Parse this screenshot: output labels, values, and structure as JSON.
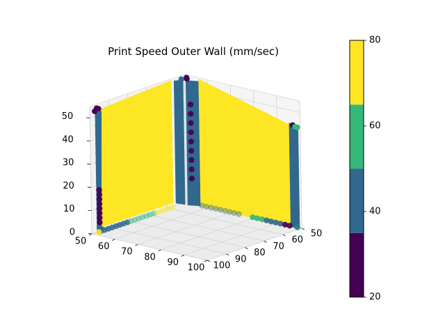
{
  "chart_data": {
    "type": "scatter",
    "projection": "3d",
    "title": "Print Speed Outer Wall (mm/sec)",
    "xlabel": "",
    "ylabel": "",
    "zlabel": "",
    "axis_x": {
      "ticks": [
        50,
        60,
        70,
        80,
        90,
        100
      ],
      "range": [
        50,
        100
      ]
    },
    "axis_y": {
      "ticks": [
        50,
        60,
        70,
        80,
        90,
        100
      ],
      "range": [
        50,
        100
      ]
    },
    "axis_z": {
      "ticks": [
        0,
        10,
        20,
        30,
        40,
        50
      ],
      "range": [
        0,
        55
      ]
    },
    "grid": true,
    "colorbar": {
      "ticks": [
        20,
        40,
        60,
        80
      ],
      "range": [
        20,
        80
      ],
      "levels": [
        {
          "from": 20,
          "to": 35,
          "color": "#440154"
        },
        {
          "from": 35,
          "to": 50,
          "color": "#31688e"
        },
        {
          "from": 50,
          "to": 65,
          "color": "#35b779"
        },
        {
          "from": 65,
          "to": 80,
          "color": "#fde725"
        }
      ]
    },
    "colors": {
      "dark": "#440154",
      "blue": "#31688e",
      "green": "#35b779",
      "yellow": "#fde725"
    }
  }
}
